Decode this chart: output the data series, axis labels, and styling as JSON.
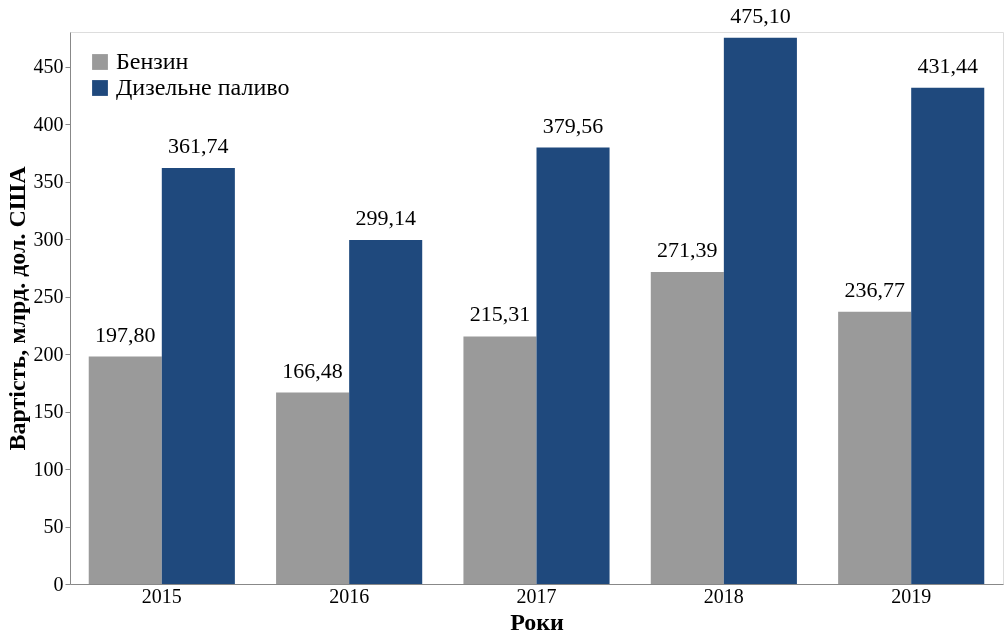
{
  "chart_data": {
    "type": "bar",
    "xlabel": "Роки",
    "ylabel": "Вартість, млрд. дол. США",
    "categories": [
      "2015",
      "2016",
      "2017",
      "2018",
      "2019"
    ],
    "series": [
      {
        "name": "Бензин",
        "color": "#9a9a9a",
        "values": [
          197.8,
          166.48,
          215.31,
          271.39,
          236.77
        ],
        "value_labels": [
          "197,80",
          "166,48",
          "215,31",
          "271,39",
          "236,77"
        ]
      },
      {
        "name": "Дизельне паливо",
        "color": "#1f497d",
        "values": [
          361.74,
          299.14,
          379.56,
          475.1,
          431.44
        ],
        "value_labels": [
          "361,74",
          "299,14",
          "379,56",
          "475,10",
          "431,44"
        ]
      }
    ],
    "ylim": [
      0,
      480
    ],
    "yticks": [
      0,
      50,
      100,
      150,
      200,
      250,
      300,
      350,
      400,
      450
    ],
    "grid": false,
    "legend": "top left"
  }
}
